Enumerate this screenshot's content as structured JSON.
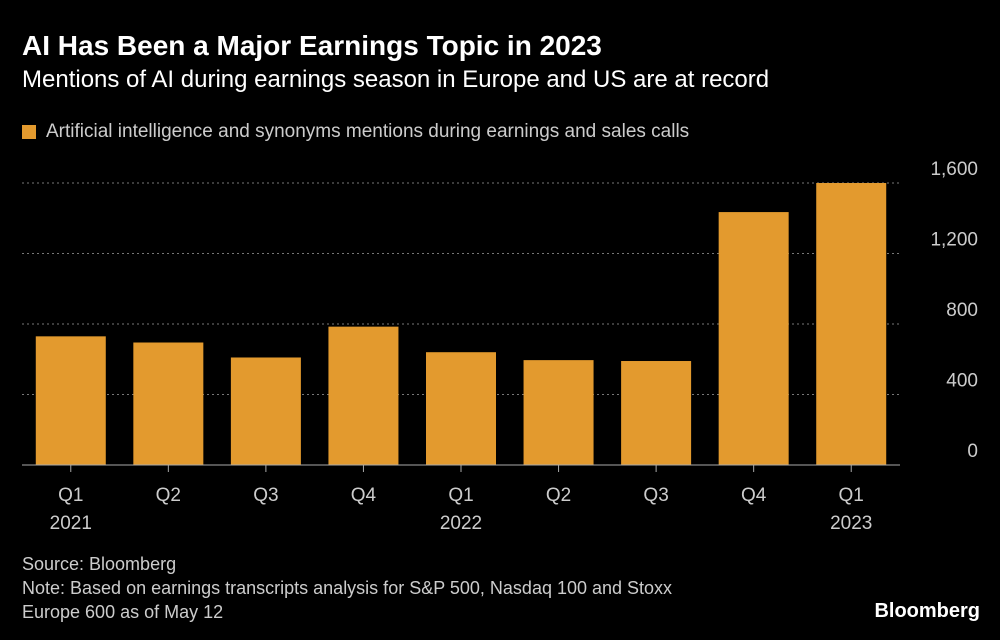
{
  "header": {
    "title": "AI Has Been a Major Earnings Topic in 2023",
    "subtitle": "Mentions of AI during earnings season in Europe and US are at record"
  },
  "footer": {
    "source": "Source: Bloomberg",
    "note_line1": "Note: Based on earnings transcripts analysis for S&P 500, Nasdaq 100 and Stoxx",
    "note_line2": "Europe 600 as of May 12",
    "brand": "Bloomberg"
  },
  "colors": {
    "bar": "#e39a2e",
    "grid": "#777777",
    "axis": "#aaaaaa",
    "text": "#cccccc"
  },
  "chart_data": {
    "type": "bar",
    "title": "AI Has Been a Major Earnings Topic in 2023",
    "subtitle": "Mentions of AI during earnings season in Europe and US are at record",
    "legend": [
      "Artificial intelligence and synonyms mentions during earnings and sales calls"
    ],
    "legend_position": "top-left",
    "categories": [
      "Q1",
      "Q2",
      "Q3",
      "Q4",
      "Q1",
      "Q2",
      "Q3",
      "Q4",
      "Q1"
    ],
    "year_labels": [
      "2021",
      "",
      "",
      "",
      "2022",
      "",
      "",
      "",
      "2023"
    ],
    "series": [
      {
        "name": "Artificial intelligence and synonyms mentions during earnings and sales calls",
        "values": [
          730,
          695,
          610,
          785,
          640,
          595,
          590,
          1435,
          1600
        ]
      }
    ],
    "ylim": [
      0,
      1600
    ],
    "yticks": [
      0,
      400,
      800,
      1200,
      1600
    ],
    "ytick_labels": [
      "0",
      "400",
      "800",
      "1,200",
      "1,600"
    ],
    "y_axis_side": "right",
    "grid": true,
    "xlabel": "",
    "ylabel": ""
  }
}
